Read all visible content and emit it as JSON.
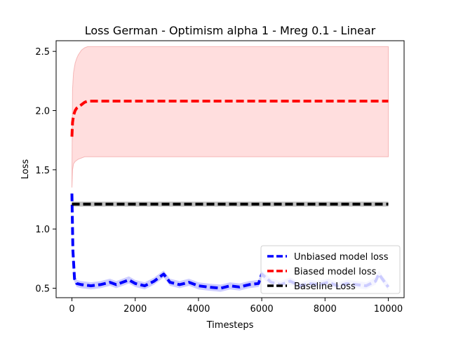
{
  "chart_data": {
    "type": "line",
    "title": "Loss German - Optimism alpha 1 - Mreg 0.1 - Linear",
    "xlabel": "Timesteps",
    "ylabel": "Loss",
    "xlim": [
      -500,
      10500
    ],
    "ylim": [
      0.42,
      2.59
    ],
    "xticks": [
      0,
      2000,
      4000,
      6000,
      8000,
      10000
    ],
    "yticks": [
      0.5,
      1.0,
      1.5,
      2.0,
      2.5
    ],
    "xtick_labels": [
      "0",
      "2000",
      "4000",
      "6000",
      "8000",
      "10000"
    ],
    "ytick_labels": [
      "0.5",
      "1.0",
      "1.5",
      "2.0",
      "2.5"
    ],
    "grid": false,
    "legend_position": "lower-right",
    "series": [
      {
        "name": "Unbiased model loss",
        "color": "#0000ff",
        "style": "dashed",
        "band_color": "#c8c8ff",
        "x": [
          0,
          30,
          80,
          150,
          300,
          600,
          900,
          1200,
          1400,
          1800,
          2000,
          2300,
          2600,
          2900,
          3100,
          3400,
          3700,
          4000,
          4300,
          4700,
          5000,
          5300,
          5600,
          5900,
          6000,
          6300,
          6600,
          6900,
          7200,
          7500,
          7800,
          8100,
          8400,
          8700,
          9000,
          9300,
          9600,
          9700,
          10000
        ],
        "values": [
          1.3,
          0.82,
          0.58,
          0.54,
          0.53,
          0.52,
          0.53,
          0.55,
          0.53,
          0.57,
          0.54,
          0.52,
          0.56,
          0.62,
          0.55,
          0.53,
          0.55,
          0.52,
          0.51,
          0.5,
          0.52,
          0.51,
          0.53,
          0.54,
          0.62,
          0.55,
          0.53,
          0.56,
          0.52,
          0.54,
          0.53,
          0.55,
          0.52,
          0.54,
          0.53,
          0.52,
          0.56,
          0.62,
          0.51
        ]
      },
      {
        "name": "Biased model loss",
        "color": "#ff0000",
        "style": "dashed",
        "band_color": "#ffdede",
        "band_edge": "#f5b7b7",
        "x": [
          0,
          20,
          50,
          100,
          150,
          200,
          300,
          400,
          500,
          1000,
          10000
        ],
        "values": [
          1.78,
          1.9,
          1.96,
          2.0,
          2.02,
          2.03,
          2.05,
          2.07,
          2.08,
          2.08,
          2.08
        ],
        "band_upper": [
          1.4,
          2.18,
          2.32,
          2.4,
          2.44,
          2.47,
          2.51,
          2.53,
          2.54,
          2.54,
          2.54
        ],
        "band_lower": [
          1.35,
          1.5,
          1.55,
          1.57,
          1.58,
          1.59,
          1.6,
          1.61,
          1.61,
          1.61,
          1.61
        ]
      },
      {
        "name": "Baseline Loss",
        "color": "#000000",
        "style": "dashed",
        "band_color": "#c0c0c0",
        "x": [
          0,
          10000
        ],
        "values": [
          1.21,
          1.21
        ]
      }
    ]
  }
}
